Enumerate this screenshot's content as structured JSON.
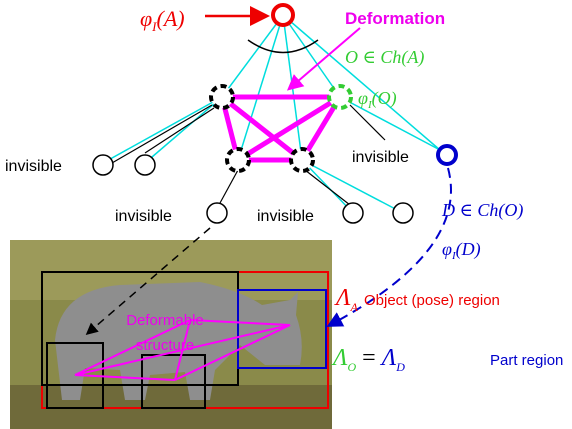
{
  "root_label": {
    "base": "φ",
    "sub": "I",
    "rest": "(A)"
  },
  "deformation": "Deformation",
  "object_child": "O ∈ Ch(A)",
  "object_label": {
    "base": "φ",
    "sub": "I",
    "rest": "(O)"
  },
  "invisible_labels": [
    "invisible",
    "invisible",
    "invisible",
    "invisible"
  ],
  "part_child": "D ∈ Ch(O)",
  "part_label": {
    "base": "φ",
    "sub": "I",
    "rest": "(D)"
  },
  "object_region": {
    "symbol": "Λ",
    "sub": "A",
    "text": "Object (pose) region"
  },
  "part_region": {
    "symbol1": "Λ",
    "sub1": "O",
    "eq": " = ",
    "symbol2": "Λ",
    "sub2": "D",
    "text": "Part region"
  },
  "deformable": [
    "Deformable",
    "structure"
  ]
}
